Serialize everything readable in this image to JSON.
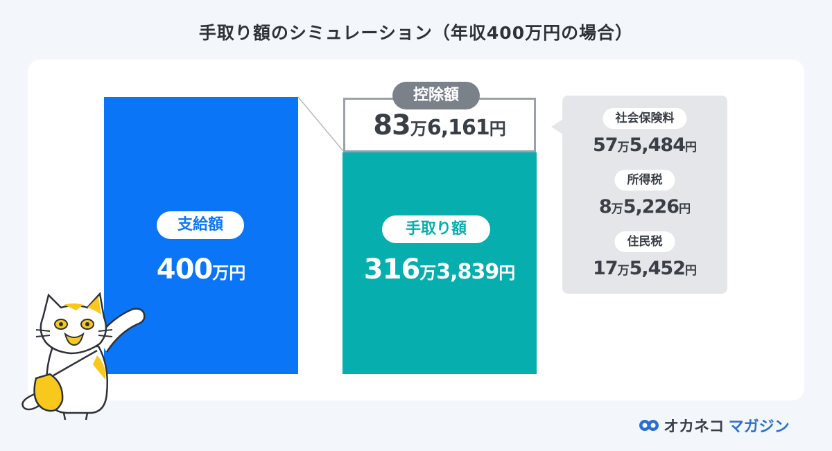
{
  "title": "手取り額のシミュレーション（年収400万円の場合）",
  "gross": {
    "label": "支給額",
    "amount_main": "400",
    "amount_unit": "万円"
  },
  "net": {
    "label": "手取り額",
    "amount_main": "316",
    "amount_man": "万",
    "amount_rest": "3,839",
    "amount_yen": "円"
  },
  "deduction": {
    "label": "控除額",
    "amount_main": "83",
    "amount_man": "万",
    "amount_rest": "6,161",
    "amount_yen": "円"
  },
  "breakdown": [
    {
      "label": "社会保険料",
      "main": "57",
      "man": "万",
      "rest": "5,484",
      "yen": "円"
    },
    {
      "label": "所得税",
      "main": "8",
      "man": "万",
      "rest": "5,226",
      "yen": "円"
    },
    {
      "label": "住民税",
      "main": "17",
      "man": "万",
      "rest": "5,452",
      "yen": "円"
    }
  ],
  "logo": {
    "text_a": "オカネコ",
    "text_b": "マガジン"
  },
  "colors": {
    "gross": "#0a75f7",
    "net": "#06aeae",
    "deduction": "#7b8189",
    "breakdown_bg": "#e4e6e9"
  },
  "icons": [
    "mascot-cat-icon",
    "okaneko-logo-icon"
  ]
}
